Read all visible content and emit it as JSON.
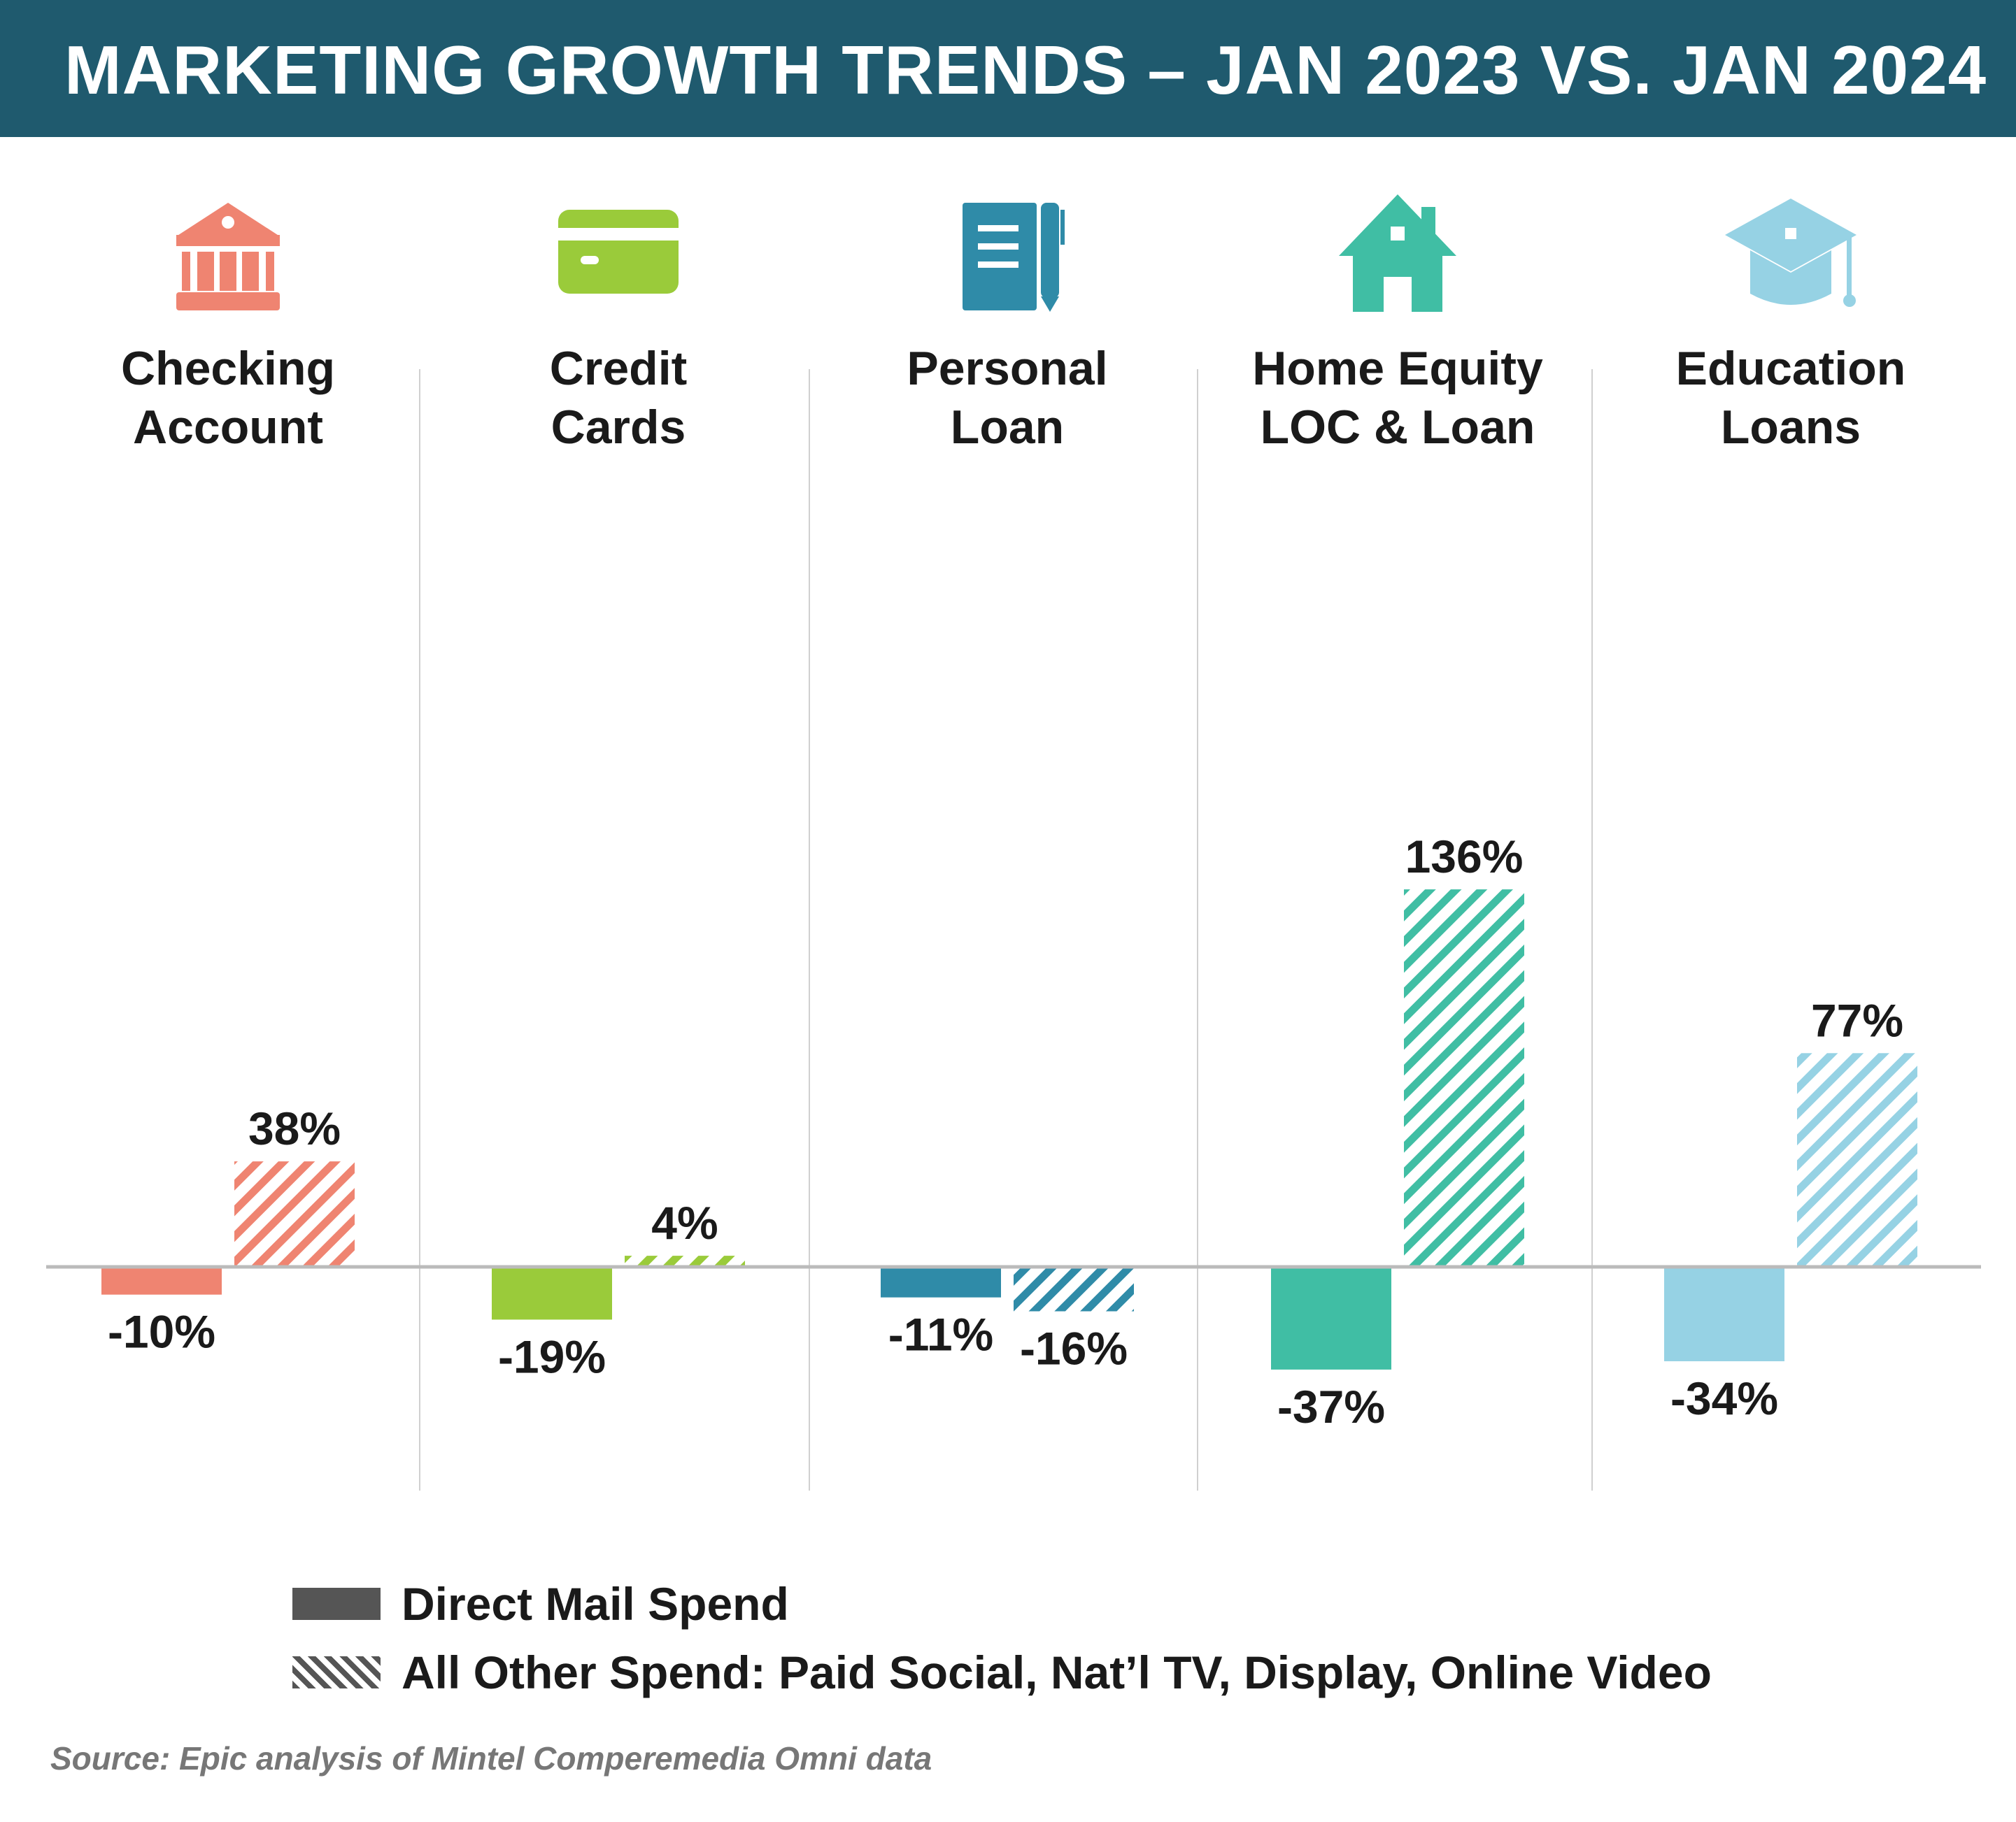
{
  "title": "MARKETING GROWTH TRENDS – JAN 2023 VS. JAN 2024",
  "chart_data": {
    "type": "bar",
    "title": "MARKETING GROWTH TRENDS – JAN 2023 VS. JAN 2024",
    "categories": [
      {
        "lines": [
          "Checking",
          "Account"
        ],
        "icon": "bank-icon",
        "color": "#ef8471"
      },
      {
        "lines": [
          "Credit",
          "Cards"
        ],
        "icon": "credit-card-icon",
        "color": "#9acb3a"
      },
      {
        "lines": [
          "Personal",
          "Loan"
        ],
        "icon": "notebook-pen-icon",
        "color": "#2f8ba8"
      },
      {
        "lines": [
          "Home Equity",
          "LOC & Loan"
        ],
        "icon": "house-icon",
        "color": "#40bea4"
      },
      {
        "lines": [
          "Education",
          "Loans"
        ],
        "icon": "graduation-cap-icon",
        "color": "#96d2e4"
      }
    ],
    "series": [
      {
        "name": "Direct Mail Spend",
        "pattern": "solid",
        "values": [
          -10,
          -19,
          -11,
          -37,
          -34
        ],
        "labels": [
          "-10%",
          "-19%",
          "-11%",
          "-37%",
          "-34%"
        ]
      },
      {
        "name": "All Other Spend: Paid Social, Nat’l TV, Display, Online Video",
        "pattern": "hatched",
        "values": [
          38,
          4,
          -16,
          136,
          77
        ],
        "labels": [
          "38%",
          "4%",
          "-16%",
          "136%",
          "77%"
        ]
      }
    ],
    "ylim": [
      -45,
      150
    ],
    "grid": false
  },
  "legend": {
    "solid_label": "Direct Mail Spend",
    "hatched_label": "All Other Spend: Paid Social, Nat’l TV, Display, Online Video",
    "swatch_color": "#555555"
  },
  "source": "Source: Epic analysis of Mintel Comperemedia Omni data",
  "colors": {
    "header": "#1f5a6e",
    "axis": "#bbbbbb",
    "divider": "#d0d0d0",
    "text": "#1a1a1a"
  }
}
